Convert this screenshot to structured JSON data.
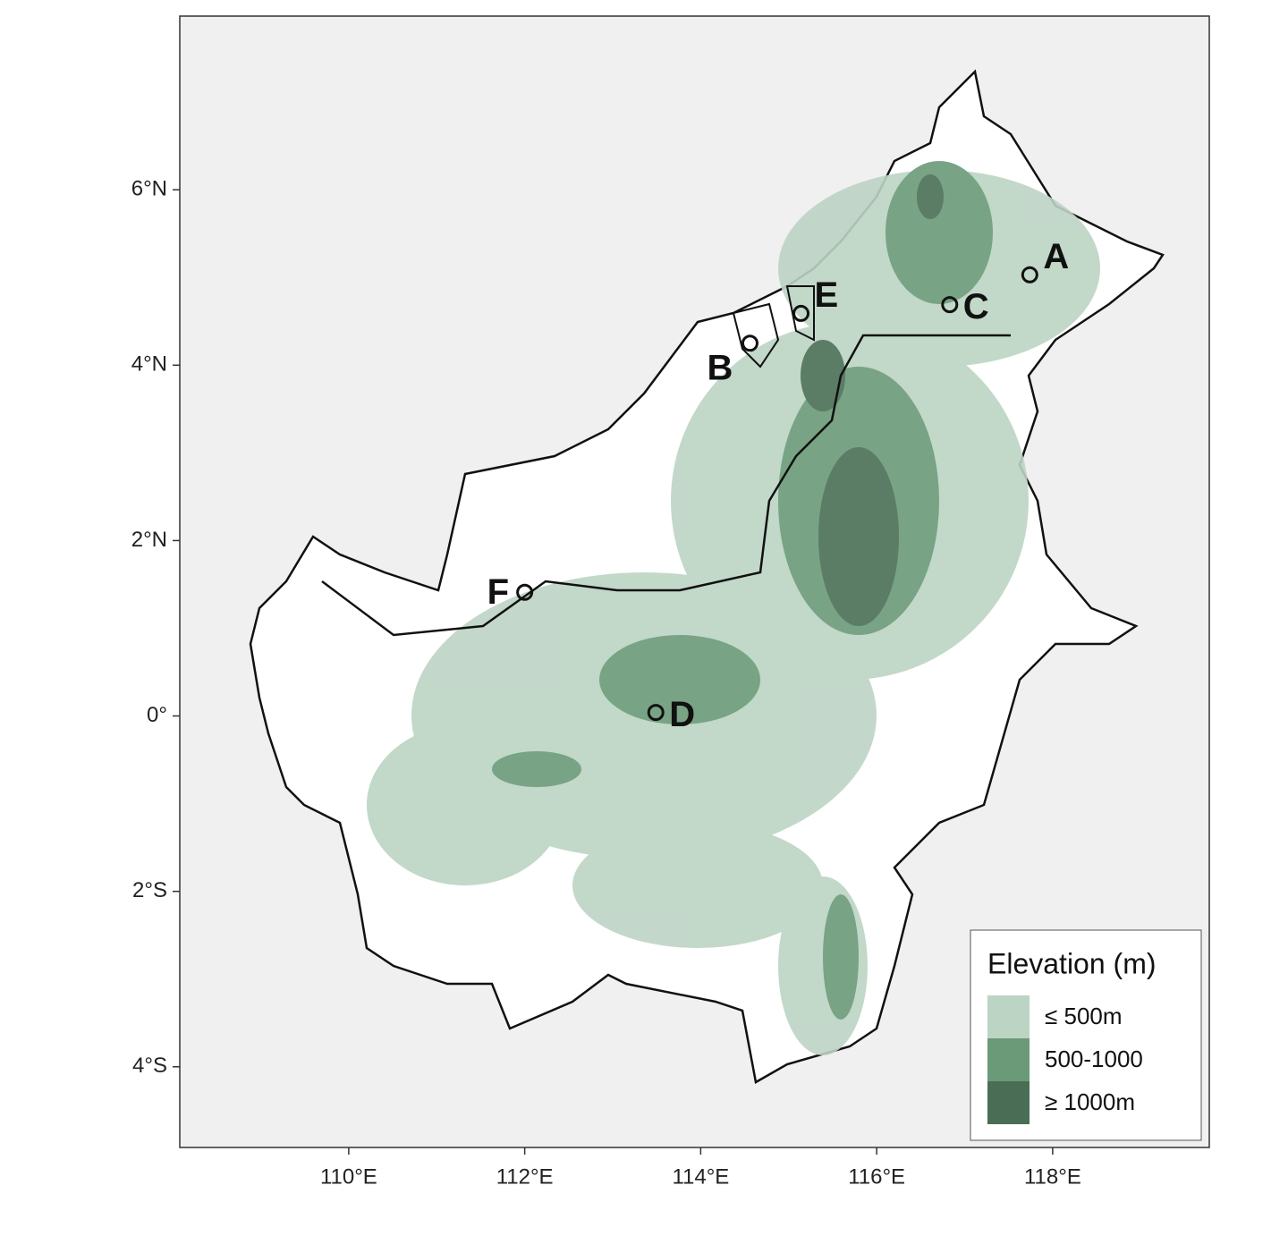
{
  "map": {
    "xlim": [
      108.08,
      119.78
    ],
    "ylim": [
      -4.92,
      7.98
    ],
    "xticks": [
      {
        "value": 110,
        "label": "110°E"
      },
      {
        "value": 112,
        "label": "112°E"
      },
      {
        "value": 114,
        "label": "114°E"
      },
      {
        "value": 116,
        "label": "116°E"
      },
      {
        "value": 118,
        "label": "118°E"
      }
    ],
    "yticks": [
      {
        "value": -4,
        "label": "4°S"
      },
      {
        "value": -2,
        "label": "2°S"
      },
      {
        "value": 0,
        "label": "0°"
      },
      {
        "value": 2,
        "label": "2°N"
      },
      {
        "value": 4,
        "label": "4°N"
      },
      {
        "value": 6,
        "label": "6°N"
      }
    ],
    "sites": [
      {
        "label": "A",
        "lon": 117.74,
        "lat": 5.03
      },
      {
        "label": "B",
        "lon": 114.56,
        "lat": 4.25
      },
      {
        "label": "C",
        "lon": 116.83,
        "lat": 4.69
      },
      {
        "label": "D",
        "lon": 113.49,
        "lat": 0.04
      },
      {
        "label": "E",
        "lon": 115.14,
        "lat": 4.59
      },
      {
        "label": "F",
        "lon": 112.0,
        "lat": 1.41
      }
    ],
    "legend": {
      "title": "Elevation (m)",
      "entries": [
        {
          "label": "≤ 500m",
          "color": "#bcd4c4"
        },
        {
          "label": "500-1000",
          "color": "#6a9a78"
        },
        {
          "label": "≥ 1000m",
          "color": "#4a6e55"
        }
      ]
    }
  }
}
